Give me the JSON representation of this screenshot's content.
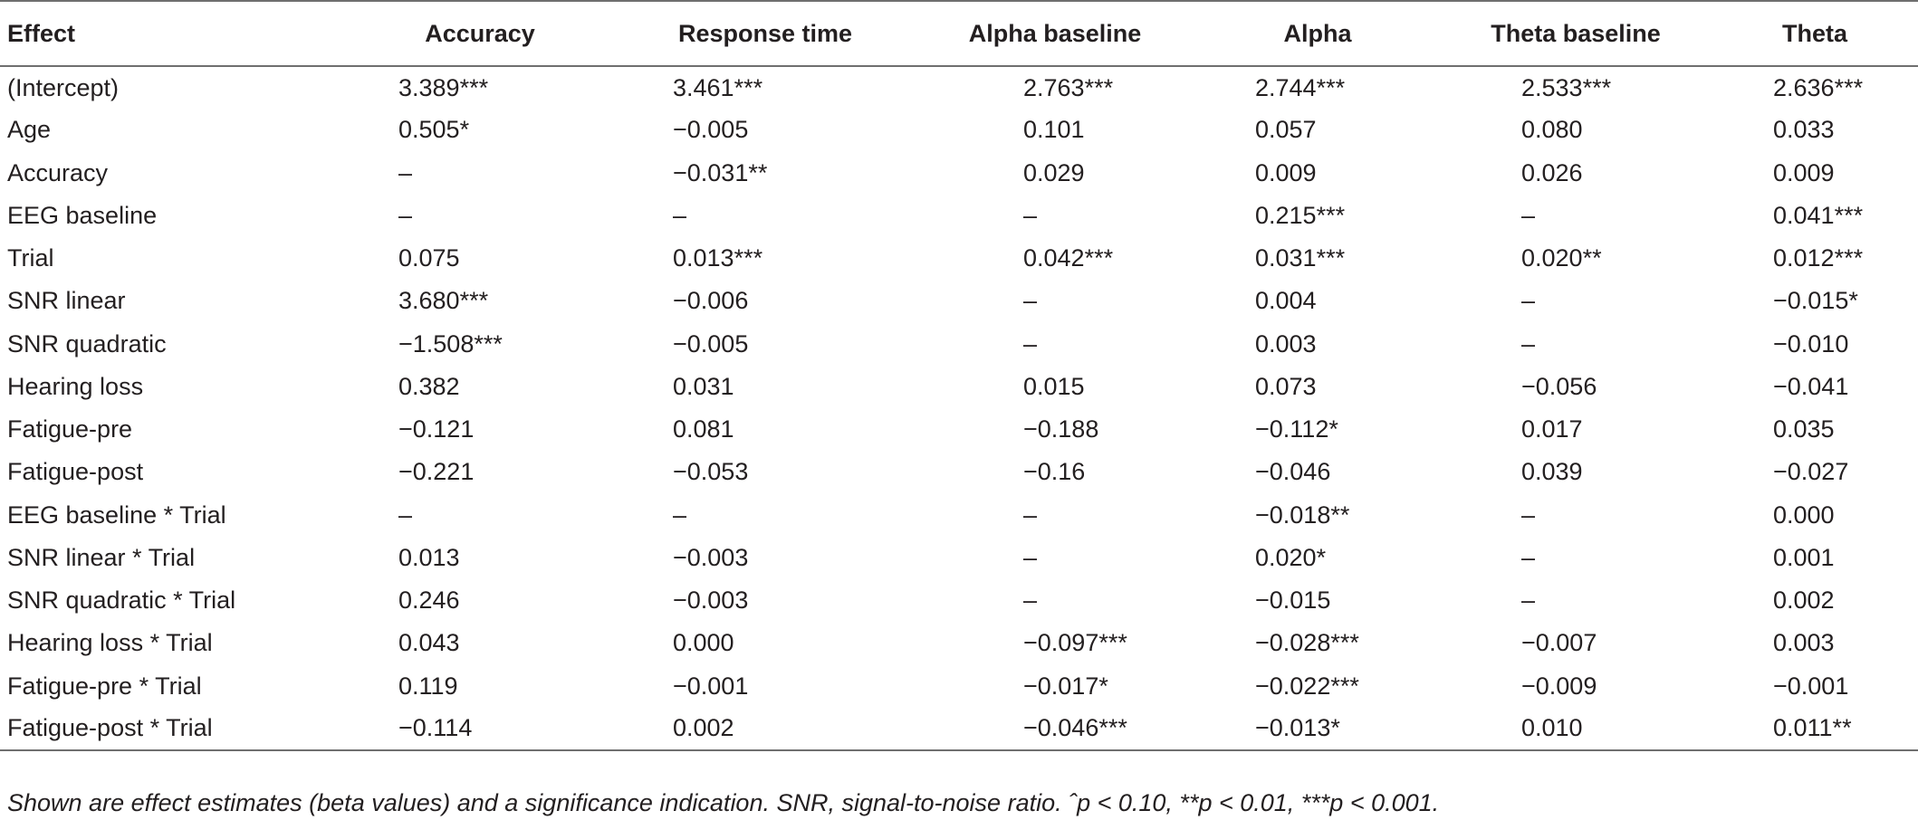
{
  "table": {
    "headers": [
      "Effect",
      "Accuracy",
      "Response time",
      "Alpha baseline",
      "Alpha",
      "Theta baseline",
      "Theta"
    ],
    "rows": [
      [
        "(Intercept)",
        "3.389***",
        "3.461***",
        "2.763***",
        "2.744***",
        "2.533***",
        "2.636***"
      ],
      [
        "Age",
        "0.505*",
        "−0.005",
        "0.101",
        "0.057",
        "0.080",
        "0.033"
      ],
      [
        "Accuracy",
        "–",
        "−0.031**",
        "0.029",
        "0.009",
        "0.026",
        "0.009"
      ],
      [
        "EEG baseline",
        "–",
        "–",
        "–",
        "0.215***",
        "–",
        "0.041***"
      ],
      [
        "Trial",
        "0.075",
        "0.013***",
        "0.042***",
        "0.031***",
        "0.020**",
        "0.012***"
      ],
      [
        "SNR linear",
        "3.680***",
        "−0.006",
        "–",
        "0.004",
        "–",
        "−0.015*"
      ],
      [
        "SNR quadratic",
        "−1.508***",
        "−0.005",
        "–",
        "0.003",
        "–",
        "−0.010"
      ],
      [
        "Hearing loss",
        "0.382",
        "0.031",
        "0.015",
        "0.073",
        "−0.056",
        "−0.041"
      ],
      [
        "Fatigue-pre",
        "−0.121",
        "0.081",
        "−0.188",
        "−0.112*",
        "0.017",
        "0.035"
      ],
      [
        "Fatigue-post",
        "−0.221",
        "−0.053",
        "−0.16",
        "−0.046",
        "0.039",
        "−0.027"
      ],
      [
        "EEG baseline * Trial",
        "–",
        "–",
        "–",
        "−0.018**",
        "–",
        "0.000"
      ],
      [
        "SNR linear * Trial",
        "0.013",
        "−0.003",
        "–",
        "0.020*",
        "–",
        "0.001"
      ],
      [
        "SNR quadratic * Trial",
        "0.246",
        "−0.003",
        "–",
        "−0.015",
        "–",
        "0.002"
      ],
      [
        "Hearing loss * Trial",
        "0.043",
        "0.000",
        "−0.097***",
        "−0.028***",
        "−0.007",
        "0.003"
      ],
      [
        "Fatigue-pre * Trial",
        "0.119",
        "−0.001",
        "−0.017*",
        "−0.022***",
        "−0.009",
        "−0.001"
      ],
      [
        "Fatigue-post * Trial",
        "−0.114",
        "0.002",
        "−0.046***",
        "−0.013*",
        "0.010",
        "0.011**"
      ]
    ]
  },
  "footnote": "Shown are effect estimates (beta values) and a significance indication. SNR, signal-to-noise ratio. ˆp < 0.10, **p < 0.01, ***p < 0.001."
}
